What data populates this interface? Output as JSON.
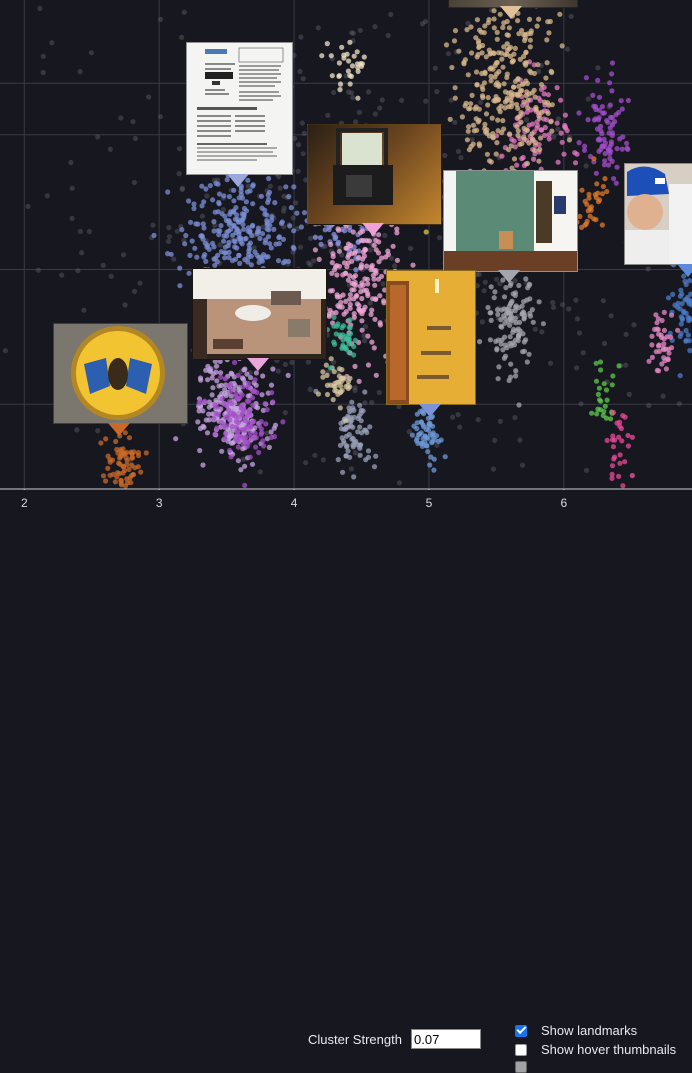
{
  "chart_data": {
    "type": "scatter",
    "title": "",
    "xlabel": "",
    "ylabel": "",
    "x_ticks": [
      "2",
      "3",
      "4",
      "5",
      "6"
    ],
    "xlim": [
      1.82,
      6.95
    ],
    "ylim": [
      0,
      1
    ],
    "grid": true,
    "clusters": [
      {
        "color": "#7b8fd6",
        "cx": 3.6,
        "cy": 0.52,
        "sx": 0.22,
        "sy": 0.06,
        "n": 260
      },
      {
        "color": "#8b93e0",
        "cx": 4.35,
        "cy": 0.55,
        "sx": 0.12,
        "sy": 0.04,
        "n": 80
      },
      {
        "color": "#c8a4e4",
        "cx": 3.55,
        "cy": 0.16,
        "sx": 0.13,
        "sy": 0.05,
        "n": 240
      },
      {
        "color": "#a54fc9",
        "cx": 3.62,
        "cy": 0.15,
        "sx": 0.13,
        "sy": 0.05,
        "n": 120
      },
      {
        "color": "#f0a7d8",
        "cx": 4.5,
        "cy": 0.43,
        "sx": 0.14,
        "sy": 0.08,
        "n": 200
      },
      {
        "color": "#e47bc0",
        "cx": 5.8,
        "cy": 0.73,
        "sx": 0.12,
        "sy": 0.05,
        "n": 90
      },
      {
        "color": "#d8b98e",
        "cx": 5.55,
        "cy": 0.84,
        "sx": 0.18,
        "sy": 0.1,
        "n": 300
      },
      {
        "color": "#a5a5ad",
        "cx": 5.62,
        "cy": 0.34,
        "sx": 0.09,
        "sy": 0.05,
        "n": 120
      },
      {
        "color": "#9aa2ba",
        "cx": 4.45,
        "cy": 0.12,
        "sx": 0.08,
        "sy": 0.04,
        "n": 70
      },
      {
        "color": "#6d9ad8",
        "cx": 4.98,
        "cy": 0.12,
        "sx": 0.05,
        "sy": 0.03,
        "n": 60
      },
      {
        "color": "#c96a2a",
        "cx": 2.72,
        "cy": 0.06,
        "sx": 0.08,
        "sy": 0.03,
        "n": 70
      },
      {
        "color": "#a34fcc",
        "cx": 6.3,
        "cy": 0.72,
        "sx": 0.09,
        "sy": 0.05,
        "n": 80
      },
      {
        "color": "#4c7cc8",
        "cx": 6.9,
        "cy": 0.36,
        "sx": 0.06,
        "sy": 0.05,
        "n": 60
      },
      {
        "color": "#e88ac6",
        "cx": 6.72,
        "cy": 0.31,
        "sx": 0.05,
        "sy": 0.03,
        "n": 40
      },
      {
        "color": "#d8c8a0",
        "cx": 4.33,
        "cy": 0.22,
        "sx": 0.06,
        "sy": 0.03,
        "n": 40
      },
      {
        "color": "#3fbf9a",
        "cx": 4.37,
        "cy": 0.31,
        "sx": 0.05,
        "sy": 0.02,
        "n": 35
      },
      {
        "color": "#e07a2a",
        "cx": 6.22,
        "cy": 0.59,
        "sx": 0.06,
        "sy": 0.03,
        "n": 30
      },
      {
        "color": "#f0e4c8",
        "cx": 4.4,
        "cy": 0.86,
        "sx": 0.08,
        "sy": 0.03,
        "n": 30
      },
      {
        "color": "#39bf7a",
        "cx": 3.55,
        "cy": 0.36,
        "sx": 0.18,
        "sy": 0.03,
        "n": 50
      },
      {
        "color": "#e2c74a",
        "cx": 4.9,
        "cy": 0.57,
        "sx": 0.06,
        "sy": 0.02,
        "n": 20
      },
      {
        "color": "#5ec94a",
        "cx": 6.3,
        "cy": 0.18,
        "sx": 0.05,
        "sy": 0.03,
        "n": 25
      },
      {
        "color": "#e94a9a",
        "cx": 6.4,
        "cy": 0.08,
        "sx": 0.05,
        "sy": 0.04,
        "n": 30
      },
      {
        "color": "#5f5f6a",
        "cx": 4.5,
        "cy": 0.5,
        "sx": 1.3,
        "sy": 0.28,
        "n": 500
      }
    ]
  },
  "landmarks": [
    {
      "name": "document",
      "pointer": "#9aa8dc"
    },
    {
      "name": "dark-case",
      "pointer": "#f0a2d8"
    },
    {
      "name": "green-room",
      "pointer": "#a5a5ad"
    },
    {
      "name": "child-hat",
      "pointer": "#5d8ad8"
    },
    {
      "name": "workbench",
      "pointer": "#e9a7d9"
    },
    {
      "name": "yellow-wall",
      "pointer": "#7c93d8"
    },
    {
      "name": "badge-plate",
      "pointer": "#c96a2a"
    },
    {
      "name": "top-strip",
      "pointer": "#e0c19a"
    }
  ],
  "controls": {
    "cluster_strength_label": "Cluster Strength",
    "cluster_strength_value": "0.07",
    "show_landmarks_label": "Show landmarks",
    "show_landmarks_checked": true,
    "show_hover_thumbnails_label": "Show hover thumbnails",
    "show_hover_thumbnails_checked": false
  }
}
